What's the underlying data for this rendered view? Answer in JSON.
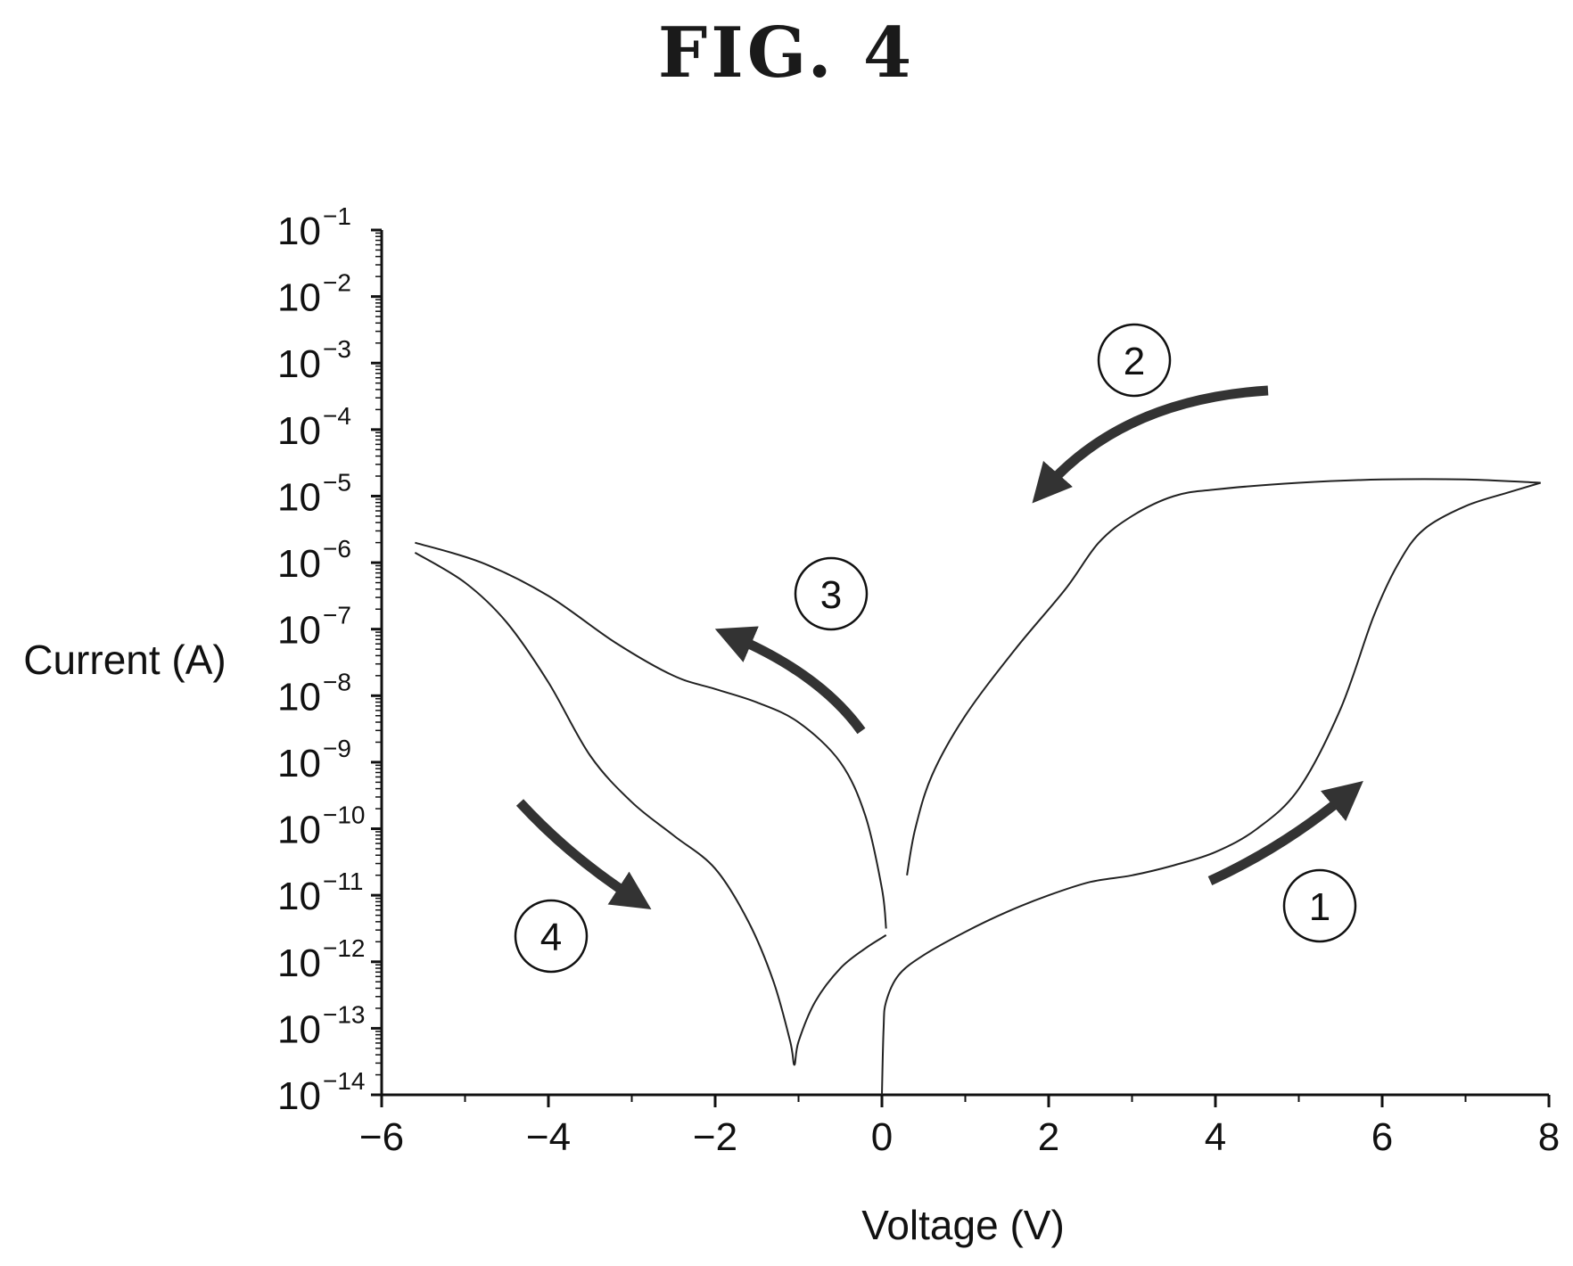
{
  "figure": {
    "title": "FIG. 4"
  },
  "chart_data": {
    "type": "line",
    "xlabel": "Voltage (V)",
    "ylabel": "Current (A)",
    "xlim": [
      -6,
      8
    ],
    "ylim_log10": [
      -14,
      -1
    ],
    "y_scale": "log",
    "grid": false,
    "x_ticks": [
      "−6",
      "−4",
      "−2",
      "0",
      "2",
      "4",
      "6",
      "8"
    ],
    "x_tick_values": [
      -6,
      -4,
      -2,
      0,
      2,
      4,
      6,
      8
    ],
    "y_tick_exponents": [
      "−1",
      "−2",
      "−3",
      "−4",
      "−5",
      "−6",
      "−7",
      "−8",
      "−9",
      "−10",
      "−11",
      "−12",
      "−13",
      "−14"
    ],
    "y_tick_values_log10": [
      -1,
      -2,
      -3,
      -4,
      -5,
      -6,
      -7,
      -8,
      -9,
      -10,
      -11,
      -12,
      -13,
      -14
    ],
    "y_tick_base": "10",
    "series": [
      {
        "points": [
          [
            0.0,
            -14.0
          ],
          [
            0.02,
            -13.0
          ],
          [
            0.05,
            -12.6
          ],
          [
            0.2,
            -12.2
          ],
          [
            0.5,
            -11.9
          ],
          [
            1.0,
            -11.55
          ],
          [
            1.5,
            -11.25
          ],
          [
            2.0,
            -11.0
          ],
          [
            2.5,
            -10.8
          ],
          [
            3.0,
            -10.7
          ],
          [
            3.5,
            -10.55
          ],
          [
            4.0,
            -10.35
          ],
          [
            4.5,
            -10.0
          ],
          [
            5.0,
            -9.4
          ],
          [
            5.5,
            -8.2
          ],
          [
            5.9,
            -6.8
          ],
          [
            6.2,
            -6.0
          ],
          [
            6.5,
            -5.5
          ],
          [
            7.0,
            -5.15
          ],
          [
            7.5,
            -4.95
          ],
          [
            7.9,
            -4.8
          ]
        ]
      },
      {
        "points": [
          [
            7.9,
            -4.8
          ],
          [
            7.0,
            -4.75
          ],
          [
            6.0,
            -4.75
          ],
          [
            5.0,
            -4.8
          ],
          [
            4.0,
            -4.9
          ],
          [
            3.5,
            -5.0
          ],
          [
            3.0,
            -5.3
          ],
          [
            2.6,
            -5.7
          ],
          [
            2.2,
            -6.4
          ],
          [
            1.6,
            -7.3
          ],
          [
            1.0,
            -8.3
          ],
          [
            0.6,
            -9.2
          ],
          [
            0.4,
            -10.0
          ],
          [
            0.3,
            -10.7
          ]
        ]
      },
      {
        "points": [
          [
            0.05,
            -11.5
          ],
          [
            0.0,
            -10.9
          ],
          [
            -0.2,
            -9.8
          ],
          [
            -0.5,
            -9.0
          ],
          [
            -1.0,
            -8.4
          ],
          [
            -1.5,
            -8.1
          ],
          [
            -2.0,
            -7.9
          ],
          [
            -2.5,
            -7.7
          ],
          [
            -3.2,
            -7.2
          ],
          [
            -4.0,
            -6.5
          ],
          [
            -4.8,
            -6.0
          ],
          [
            -5.6,
            -5.7
          ]
        ]
      },
      {
        "points": [
          [
            -5.6,
            -5.85
          ],
          [
            -5.0,
            -6.3
          ],
          [
            -4.5,
            -6.9
          ],
          [
            -4.0,
            -7.8
          ],
          [
            -3.5,
            -8.9
          ],
          [
            -3.0,
            -9.6
          ],
          [
            -2.5,
            -10.1
          ],
          [
            -2.0,
            -10.6
          ],
          [
            -1.6,
            -11.4
          ],
          [
            -1.3,
            -12.3
          ],
          [
            -1.1,
            -13.2
          ],
          [
            -1.05,
            -13.55
          ],
          [
            -1.0,
            -13.2
          ],
          [
            -0.8,
            -12.6
          ],
          [
            -0.5,
            -12.1
          ],
          [
            -0.2,
            -11.8
          ],
          [
            0.05,
            -11.6
          ]
        ]
      }
    ],
    "annotations": [
      {
        "label": "1",
        "arrow_direction": "up-right"
      },
      {
        "label": "2",
        "arrow_direction": "left-down"
      },
      {
        "label": "3",
        "arrow_direction": "up-left"
      },
      {
        "label": "4",
        "arrow_direction": "down-right"
      }
    ]
  }
}
